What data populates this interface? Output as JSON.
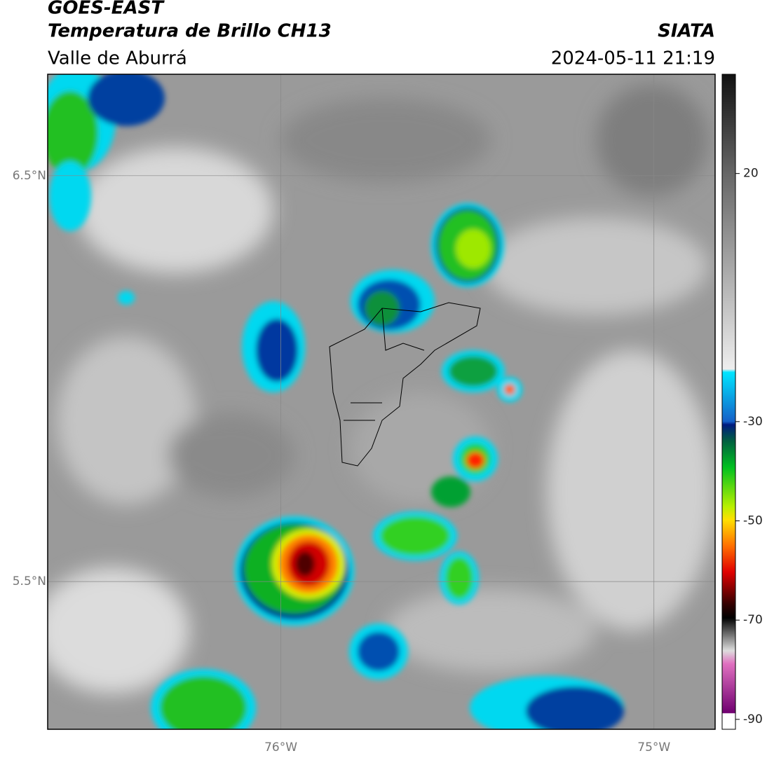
{
  "header": {
    "satellite": "GOES-EAST",
    "product": "Temperatura de Brillo CH13",
    "region": "Valle de Aburrá",
    "source": "SIATA",
    "datetime": "2024-05-11 21:19"
  },
  "map": {
    "xlim": [
      -76.625,
      -74.836
    ],
    "ylim": [
      5.136,
      6.75
    ],
    "xticks": [
      {
        "value": -76,
        "label": "76°W"
      },
      {
        "value": -75,
        "label": "75°W"
      }
    ],
    "yticks": [
      {
        "value": 6.5,
        "label": "6.5°N"
      },
      {
        "value": 5.5,
        "label": "5.5°N"
      }
    ],
    "grid": true
  },
  "colorbar": {
    "lim": [
      -92,
      40
    ],
    "ticks": [
      20,
      -30,
      -50,
      -70,
      -90
    ]
  }
}
